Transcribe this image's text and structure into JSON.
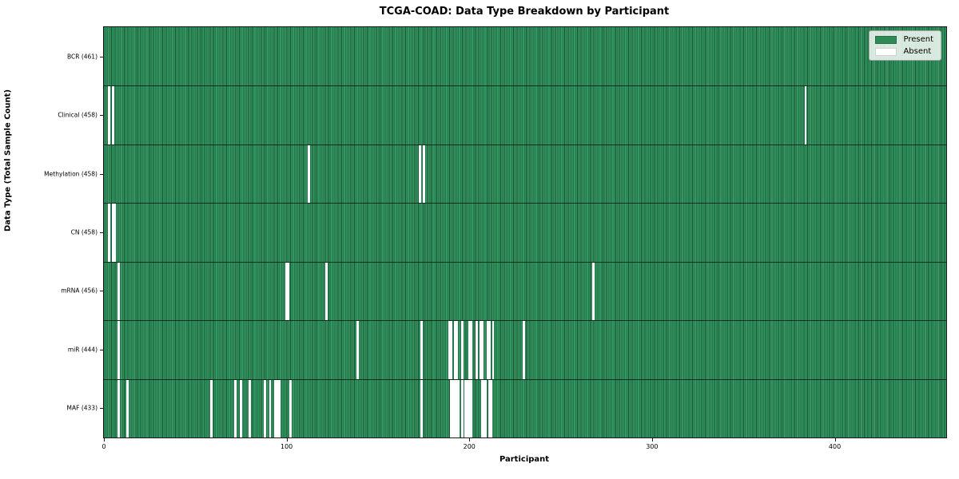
{
  "chart_data": {
    "type": "heatmap",
    "title": "TCGA-COAD: Data Type Breakdown by Participant",
    "xlabel": "Participant",
    "ylabel": "Data Type (Total Sample Count)",
    "x_ticks": [
      0,
      100,
      200,
      300,
      400
    ],
    "xlim": [
      0,
      461
    ],
    "n_participants": 461,
    "grid": false,
    "legend_position": "upper right",
    "colors": {
      "present": "#2e8b57",
      "present_render": "#319660",
      "absent": "#ffffff",
      "bar_edge": "#1f5c39",
      "plot_border": "#1a1a1a"
    },
    "legend": [
      {
        "label": "Present",
        "color": "#2e8b57"
      },
      {
        "label": "Absent",
        "color": "#ffffff"
      }
    ],
    "rows": [
      {
        "label": "BCR (461)",
        "data_type": "BCR",
        "total_samples": 461,
        "absent_participants": []
      },
      {
        "label": "Clinical (458)",
        "data_type": "Clinical",
        "total_samples": 458,
        "absent_participants": [
          3,
          5,
          384
        ]
      },
      {
        "label": "Methylation (458)",
        "data_type": "Methylation",
        "total_samples": 458,
        "absent_participants": [
          112,
          173,
          175
        ]
      },
      {
        "label": "CN (458)",
        "data_type": "CN",
        "total_samples": 458,
        "absent_participants": [
          3,
          5,
          6
        ]
      },
      {
        "label": "mRNA (456)",
        "data_type": "mRNA",
        "total_samples": 456,
        "absent_participants": [
          8,
          100,
          101,
          122,
          268
        ]
      },
      {
        "label": "miR (444)",
        "data_type": "miR",
        "total_samples": 444,
        "absent_participants": [
          8,
          139,
          174,
          189,
          190,
          192,
          193,
          196,
          200,
          201,
          204,
          206,
          207,
          210,
          211,
          213,
          230
        ]
      },
      {
        "label": "MAF (433)",
        "data_type": "MAF",
        "total_samples": 433,
        "absent_participants": [
          8,
          13,
          59,
          72,
          75,
          80,
          88,
          91,
          94,
          95,
          96,
          102,
          174,
          190,
          191,
          192,
          193,
          194,
          196,
          198,
          199,
          200,
          201,
          207,
          208,
          209,
          211,
          212
        ]
      }
    ]
  }
}
